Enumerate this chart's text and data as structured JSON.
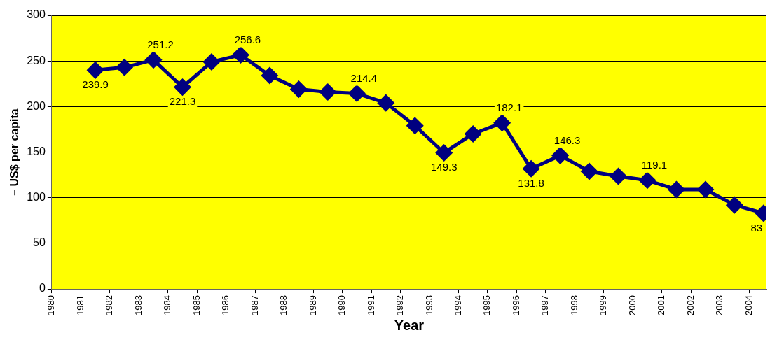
{
  "chart_data": {
    "type": "line",
    "xlabel": "Year",
    "ylabel": "– US$ per capita",
    "x": [
      1981.5,
      1982.5,
      1983.5,
      1984.5,
      1985.5,
      1986.5,
      1987.5,
      1988.5,
      1989.5,
      1990.5,
      1991.5,
      1992.5,
      1993.5,
      1994.5,
      1995.5,
      1996.5,
      1997.5,
      1998.5,
      1999.5,
      2000.5,
      2001.5,
      2002.5,
      2003.5,
      2004.5
    ],
    "series": [
      {
        "color": "#000080",
        "values": [
          239.9,
          243,
          251.2,
          221.3,
          249,
          256.6,
          234,
          219,
          216,
          214.4,
          204,
          179,
          149.3,
          170,
          182.1,
          131.8,
          146.3,
          129,
          123.5,
          119.1,
          109,
          109,
          92,
          83
        ],
        "value_labels": [
          "239.9",
          null,
          "251.2",
          "221.3",
          null,
          "256.6",
          null,
          null,
          null,
          "214.4",
          null,
          null,
          "149.3",
          null,
          "182.1",
          "131.8",
          "146.3",
          null,
          null,
          "119.1",
          null,
          null,
          null,
          "83"
        ]
      }
    ],
    "xlim": [
      1980,
      2004.6
    ],
    "xticks": [
      1980,
      1981,
      1982,
      1983,
      1984,
      1985,
      1986,
      1987,
      1988,
      1989,
      1990,
      1991,
      1992,
      1993,
      1994,
      1995,
      1996,
      1997,
      1998,
      1999,
      2000,
      2001,
      2002,
      2003,
      2004
    ],
    "ylim": [
      0,
      300
    ],
    "yticks": [
      0,
      50,
      100,
      150,
      200,
      250,
      300
    ],
    "grid": "y",
    "legend": false,
    "marker": "diamond",
    "line_style": "solid"
  }
}
